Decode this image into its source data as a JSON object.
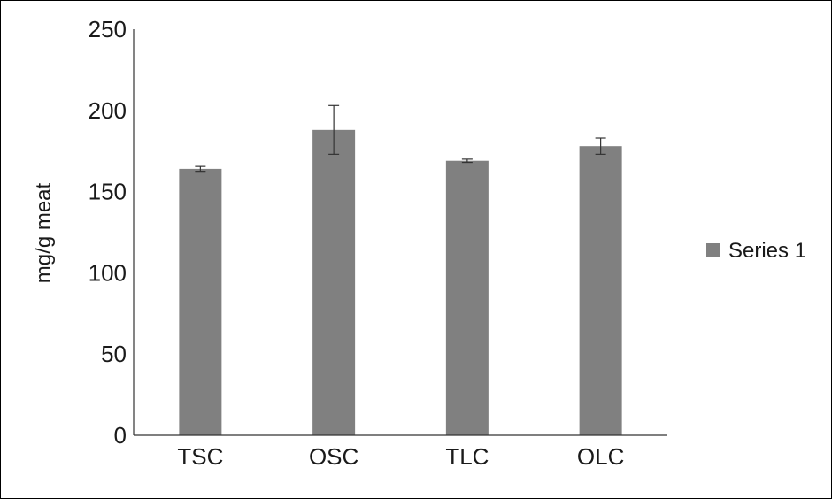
{
  "chart_data": {
    "type": "bar",
    "title": "",
    "xlabel": "",
    "ylabel": "mg/g meat",
    "categories": [
      "TSC",
      "OSC",
      "TLC",
      "OLC"
    ],
    "series": [
      {
        "name": "Series 1",
        "values": [
          164,
          188,
          169,
          178
        ],
        "errors": [
          1.5,
          15,
          1,
          5
        ],
        "color": "#808080"
      }
    ],
    "ylim": [
      0,
      250
    ],
    "yticks": [
      0,
      50,
      100,
      150,
      200,
      250
    ],
    "grid": false,
    "legend_position": "right",
    "axis_color": "#333333",
    "error_bar_color": "#333333"
  }
}
